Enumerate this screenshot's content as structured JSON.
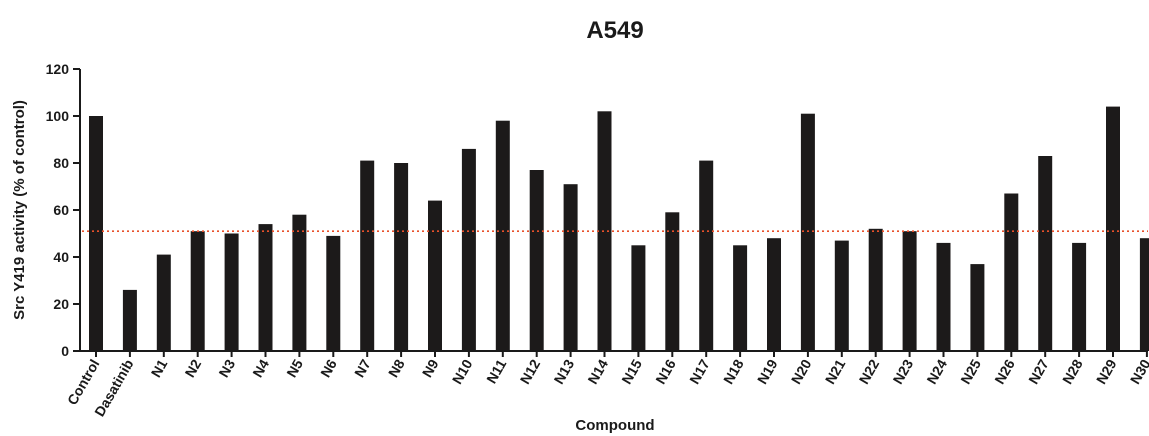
{
  "chart_data": {
    "type": "bar",
    "title": "A549",
    "xlabel": "Compound",
    "ylabel": "Src Y419 activity (% of control)",
    "ylim": [
      0,
      120
    ],
    "yticks": [
      0,
      20,
      40,
      60,
      80,
      100,
      120
    ],
    "categories": [
      "Control",
      "Dasatinib",
      "N1",
      "N2",
      "N3",
      "N4",
      "N5",
      "N6",
      "N7",
      "N8",
      "N9",
      "N10",
      "N11",
      "N12",
      "N13",
      "N14",
      "N15",
      "N16",
      "N17",
      "N18",
      "N19",
      "N20",
      "N21",
      "N22",
      "N23",
      "N24",
      "N25",
      "N26",
      "N27",
      "N28",
      "N29",
      "N30"
    ],
    "values": [
      100,
      26,
      41,
      51,
      50,
      54,
      58,
      49,
      81,
      80,
      64,
      86,
      98,
      77,
      71,
      102,
      45,
      59,
      81,
      45,
      48,
      101,
      47,
      52,
      51,
      46,
      37,
      67,
      83,
      46,
      104,
      48
    ],
    "reference_line": {
      "y": 51,
      "style": "dotted",
      "color": "#e8502a"
    },
    "bar_color": "#1c1a1a",
    "grid": false,
    "legend": "none"
  }
}
